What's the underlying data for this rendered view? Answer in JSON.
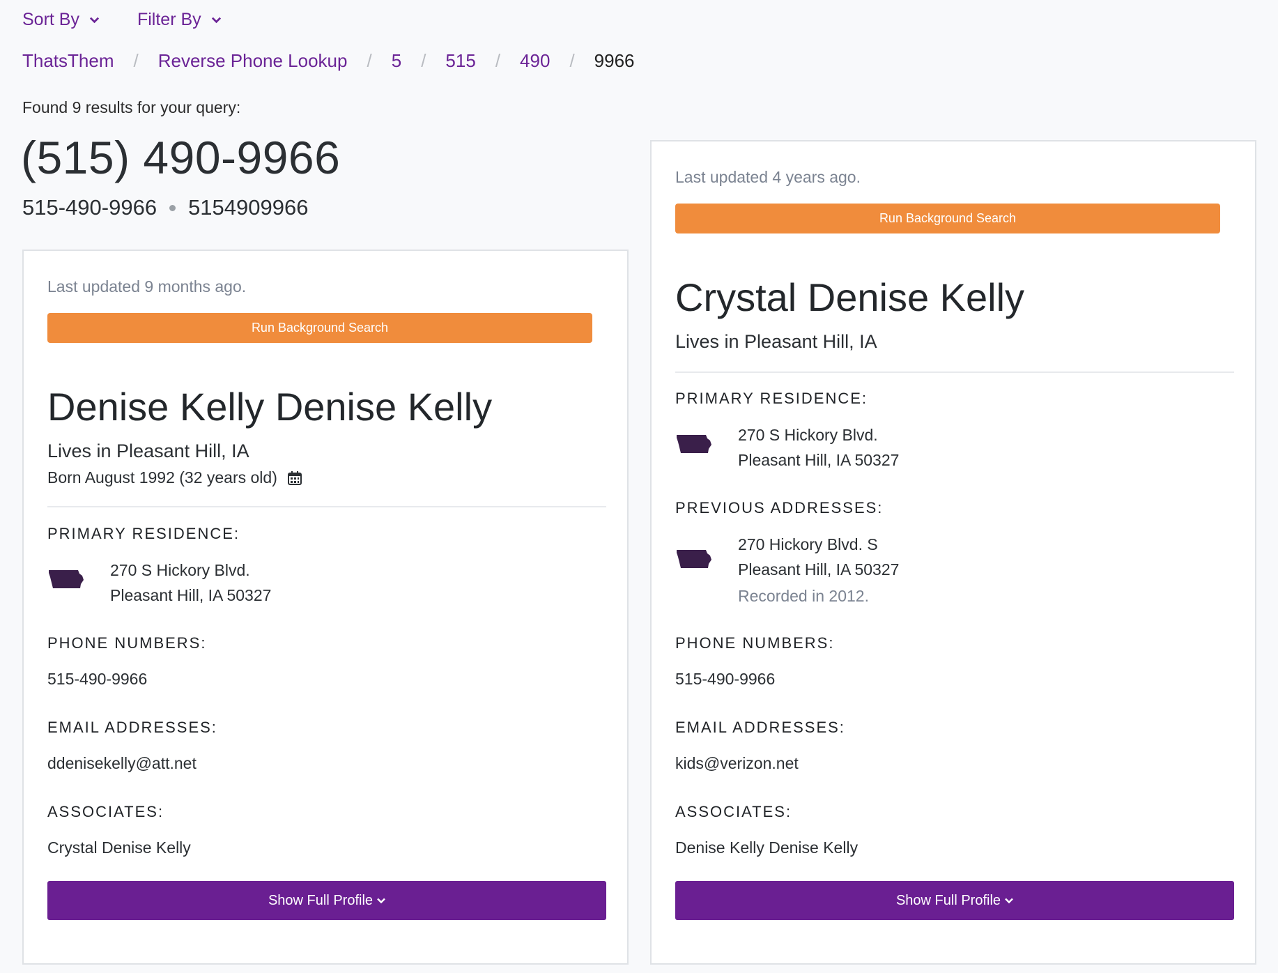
{
  "controls": {
    "sort_label": "Sort By",
    "filter_label": "Filter By"
  },
  "breadcrumb": [
    "ThatsThem",
    "Reverse Phone Lookup",
    "5",
    "515",
    "490",
    "9966"
  ],
  "results": {
    "found_text": "Found 9 results for your query:",
    "phone_formatted": "(515) 490-9966",
    "phone_dashed": "515-490-9966",
    "phone_plain": "5154909966"
  },
  "labels": {
    "run_background": "Run Background Search",
    "primary_residence": "PRIMARY RESIDENCE:",
    "previous_addresses": "PREVIOUS ADDRESSES:",
    "phone_numbers": "PHONE NUMBERS:",
    "email_addresses": "EMAIL ADDRESSES:",
    "associates": "ASSOCIATES:",
    "show_full_profile": "Show Full Profile"
  },
  "cards": [
    {
      "updated": "Last updated 9 months ago.",
      "name": "Denise Kelly Denise Kelly",
      "lives": "Lives in Pleasant Hill, IA",
      "born": "Born August 1992 (32 years old)",
      "primary_line1": "270 S Hickory Blvd.",
      "primary_line2": "Pleasant Hill, IA 50327",
      "phone": "515-490-9966",
      "email": "ddenisekelly@att.net",
      "associate": "Crystal Denise Kelly"
    },
    {
      "updated": "Last updated 4 years ago.",
      "name": "Crystal Denise Kelly",
      "lives": "Lives in Pleasant Hill, IA",
      "primary_line1": "270 S Hickory Blvd.",
      "primary_line2": "Pleasant Hill, IA 50327",
      "previous_line1": "270 Hickory Blvd. S",
      "previous_line2": "Pleasant Hill, IA 50327",
      "previous_recorded": "Recorded in 2012.",
      "phone": "515-490-9966",
      "email": "kids@verizon.net",
      "associate": "Denise Kelly Denise Kelly"
    }
  ],
  "colors": {
    "accent": "#6a1f92",
    "link": "#6b2496",
    "orange": "#f08c3c",
    "muted": "#7b8391"
  },
  "icons": [
    "chevron-down-icon",
    "calendar-icon",
    "iowa-state-icon"
  ]
}
